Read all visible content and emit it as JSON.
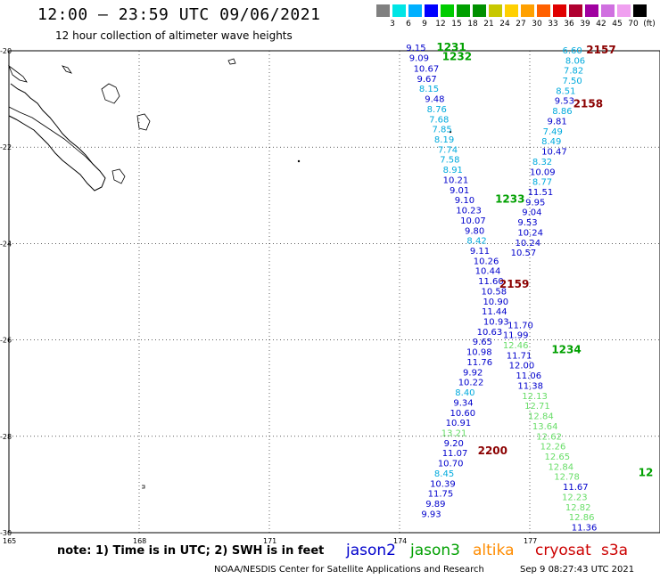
{
  "title": "12:00 – 23:59 UTC 09/06/2021",
  "subtitle": "12 hour collection of altimeter wave heights",
  "scale": {
    "colors": [
      "#808080",
      "#00e5e5",
      "#00b0ff",
      "#0000ff",
      "#00cc00",
      "#00a000",
      "#009000",
      "#c8c800",
      "#ffd000",
      "#ffa000",
      "#ff6000",
      "#e00000",
      "#b00030",
      "#a000a0",
      "#d070e0",
      "#f0a0f0",
      "#000000"
    ],
    "labels": [
      "3",
      "6",
      "9",
      "12",
      "15",
      "18",
      "21",
      "24",
      "27",
      "30",
      "33",
      "36",
      "39",
      "42",
      "45",
      "70",
      "(ft)"
    ]
  },
  "axes": {
    "lat_labels": [
      "-20",
      "-22",
      "-24",
      "-26",
      "-28",
      "-30"
    ],
    "lon_labels": [
      "165",
      "168",
      "171",
      "174",
      "177"
    ]
  },
  "note": "note: 1) Time is in UTC; 2) SWH is in feet",
  "satellites": [
    {
      "name": "jason2",
      "color": "#0000cc"
    },
    {
      "name": "jason3",
      "color": "#00a000"
    },
    {
      "name": "altika",
      "color": "#ff8c00"
    },
    {
      "name": "cryosat",
      "color": "#cc0000"
    },
    {
      "name": "s3a",
      "color": "#cc0000"
    }
  ],
  "credit": "NOAA/NESDIS Center for Satellite Applications and Research",
  "timestamp": "Sep  9 08:27:43 UTC 2021",
  "pass_labels": [
    {
      "text": "1231",
      "color": "#00a000",
      "lon": 174.85,
      "lat": -19.93
    },
    {
      "text": "1232",
      "color": "#00a000",
      "lon": 174.98,
      "lat": -20.12
    },
    {
      "text": "2157",
      "color": "#8b0000",
      "lon": 178.3,
      "lat": -19.98
    },
    {
      "text": "2158",
      "color": "#8b0000",
      "lon": 178.0,
      "lat": -21.1
    },
    {
      "text": "1233",
      "color": "#00a000",
      "lon": 176.2,
      "lat": -23.08
    },
    {
      "text": "2159",
      "color": "#8b0000",
      "lon": 176.3,
      "lat": -24.84
    },
    {
      "text": "1234",
      "color": "#00a000",
      "lon": 177.5,
      "lat": -26.2
    },
    {
      "text": "2200",
      "color": "#8b0000",
      "lon": 175.8,
      "lat": -28.3
    },
    {
      "text": "12",
      "color": "#00a000",
      "lon": 179.5,
      "lat": -28.75
    }
  ],
  "observations": [
    {
      "v": "9.15",
      "c": "#0000cc",
      "lon": 174.15,
      "lat": -19.93
    },
    {
      "v": "9.09",
      "c": "#0000cc",
      "lon": 174.22,
      "lat": -20.14
    },
    {
      "v": "10.67",
      "c": "#0000cc",
      "lon": 174.32,
      "lat": -20.36
    },
    {
      "v": "9.67",
      "c": "#0000cc",
      "lon": 174.4,
      "lat": -20.57
    },
    {
      "v": "8.15",
      "c": "#00aadd",
      "lon": 174.45,
      "lat": -20.78
    },
    {
      "v": "9.48",
      "c": "#0000cc",
      "lon": 174.58,
      "lat": -20.99
    },
    {
      "v": "8.76",
      "c": "#00aadd",
      "lon": 174.63,
      "lat": -21.2
    },
    {
      "v": "7.68",
      "c": "#00aadd",
      "lon": 174.68,
      "lat": -21.41
    },
    {
      "v": "7.85",
      "c": "#00aadd",
      "lon": 174.75,
      "lat": -21.62
    },
    {
      "v": "8.19",
      "c": "#00aadd",
      "lon": 174.8,
      "lat": -21.83
    },
    {
      "v": "7.74",
      "c": "#00aadd",
      "lon": 174.88,
      "lat": -22.04
    },
    {
      "v": "7.58",
      "c": "#00aadd",
      "lon": 174.93,
      "lat": -22.25
    },
    {
      "v": "8.91",
      "c": "#00aadd",
      "lon": 175.0,
      "lat": -22.46
    },
    {
      "v": "10.21",
      "c": "#0000cc",
      "lon": 175.0,
      "lat": -22.67
    },
    {
      "v": "9.01",
      "c": "#0000cc",
      "lon": 175.15,
      "lat": -22.88
    },
    {
      "v": "9.10",
      "c": "#0000cc",
      "lon": 175.27,
      "lat": -23.09
    },
    {
      "v": "10.23",
      "c": "#0000cc",
      "lon": 175.3,
      "lat": -23.3
    },
    {
      "v": "10.07",
      "c": "#0000cc",
      "lon": 175.4,
      "lat": -23.51
    },
    {
      "v": "9.80",
      "c": "#0000cc",
      "lon": 175.5,
      "lat": -23.72
    },
    {
      "v": "8.42",
      "c": "#00aadd",
      "lon": 175.55,
      "lat": -23.93
    },
    {
      "v": "9.11",
      "c": "#0000cc",
      "lon": 175.62,
      "lat": -24.14
    },
    {
      "v": "10.26",
      "c": "#0000cc",
      "lon": 175.7,
      "lat": -24.35
    },
    {
      "v": "10.44",
      "c": "#0000cc",
      "lon": 175.74,
      "lat": -24.56
    },
    {
      "v": "11.60",
      "c": "#0000cc",
      "lon": 175.81,
      "lat": -24.77
    },
    {
      "v": "10.58",
      "c": "#0000cc",
      "lon": 175.88,
      "lat": -24.98
    },
    {
      "v": "10.90",
      "c": "#0000cc",
      "lon": 175.92,
      "lat": -25.19
    },
    {
      "v": "11.44",
      "c": "#0000cc",
      "lon": 175.89,
      "lat": -25.4
    },
    {
      "v": "10.93",
      "c": "#0000cc",
      "lon": 175.93,
      "lat": -25.61
    },
    {
      "v": "10.63",
      "c": "#0000cc",
      "lon": 175.78,
      "lat": -25.82
    },
    {
      "v": "9.65",
      "c": "#0000cc",
      "lon": 175.68,
      "lat": -26.03
    },
    {
      "v": "10.98",
      "c": "#0000cc",
      "lon": 175.54,
      "lat": -26.24
    },
    {
      "v": "11.76",
      "c": "#0000cc",
      "lon": 175.55,
      "lat": -26.45
    },
    {
      "v": "9.92",
      "c": "#0000cc",
      "lon": 175.46,
      "lat": -26.66
    },
    {
      "v": "10.22",
      "c": "#0000cc",
      "lon": 175.35,
      "lat": -26.87
    },
    {
      "v": "8.40",
      "c": "#00aadd",
      "lon": 175.28,
      "lat": -27.08
    },
    {
      "v": "9.34",
      "c": "#0000cc",
      "lon": 175.24,
      "lat": -27.29
    },
    {
      "v": "10.60",
      "c": "#0000cc",
      "lon": 175.16,
      "lat": -27.5
    },
    {
      "v": "10.91",
      "c": "#0000cc",
      "lon": 175.06,
      "lat": -27.71
    },
    {
      "v": "13.21",
      "c": "#66dd66",
      "lon": 174.96,
      "lat": -27.92
    },
    {
      "v": "9.20",
      "c": "#0000cc",
      "lon": 175.02,
      "lat": -28.13
    },
    {
      "v": "11.07",
      "c": "#0000cc",
      "lon": 174.98,
      "lat": -28.34
    },
    {
      "v": "10.70",
      "c": "#0000cc",
      "lon": 174.88,
      "lat": -28.55
    },
    {
      "v": "8.45",
      "c": "#00aadd",
      "lon": 174.8,
      "lat": -28.76
    },
    {
      "v": "10.39",
      "c": "#0000cc",
      "lon": 174.7,
      "lat": -28.97
    },
    {
      "v": "11.75",
      "c": "#0000cc",
      "lon": 174.65,
      "lat": -29.18
    },
    {
      "v": "9.89",
      "c": "#0000cc",
      "lon": 174.6,
      "lat": -29.39
    },
    {
      "v": "9.93",
      "c": "#0000cc",
      "lon": 174.5,
      "lat": -29.6
    },
    {
      "v": "6.60",
      "c": "#00aadd",
      "lon": 177.75,
      "lat": -19.98
    },
    {
      "v": "8.06",
      "c": "#00aadd",
      "lon": 177.82,
      "lat": -20.19
    },
    {
      "v": "7.82",
      "c": "#00aadd",
      "lon": 177.78,
      "lat": -20.4
    },
    {
      "v": "7.50",
      "c": "#00aadd",
      "lon": 177.75,
      "lat": -20.61
    },
    {
      "v": "8.51",
      "c": "#00aadd",
      "lon": 177.6,
      "lat": -20.82
    },
    {
      "v": "9.53",
      "c": "#0000cc",
      "lon": 177.57,
      "lat": -21.03
    },
    {
      "v": "8.86",
      "c": "#00aadd",
      "lon": 177.52,
      "lat": -21.24
    },
    {
      "v": "9.81",
      "c": "#0000cc",
      "lon": 177.4,
      "lat": -21.45
    },
    {
      "v": "7.49",
      "c": "#00aadd",
      "lon": 177.3,
      "lat": -21.66
    },
    {
      "v": "8.49",
      "c": "#00aadd",
      "lon": 177.27,
      "lat": -21.87
    },
    {
      "v": "10.47",
      "c": "#0000cc",
      "lon": 177.27,
      "lat": -22.08
    },
    {
      "v": "8.32",
      "c": "#00aadd",
      "lon": 177.06,
      "lat": -22.29
    },
    {
      "v": "10.09",
      "c": "#0000cc",
      "lon": 177.0,
      "lat": -22.5
    },
    {
      "v": "8.77",
      "c": "#00aadd",
      "lon": 177.06,
      "lat": -22.71
    },
    {
      "v": "11.51",
      "c": "#0000cc",
      "lon": 176.95,
      "lat": -22.92
    },
    {
      "v": "9.95",
      "c": "#0000cc",
      "lon": 176.9,
      "lat": -23.13
    },
    {
      "v": "9.04",
      "c": "#0000cc",
      "lon": 176.82,
      "lat": -23.34
    },
    {
      "v": "9.53",
      "c": "#0000cc",
      "lon": 176.72,
      "lat": -23.55
    },
    {
      "v": "10.24",
      "c": "#0000cc",
      "lon": 176.72,
      "lat": -23.76
    },
    {
      "v": "10.24",
      "c": "#0000cc",
      "lon": 176.66,
      "lat": -23.97
    },
    {
      "v": "10.57",
      "c": "#0000cc",
      "lon": 176.56,
      "lat": -24.18
    },
    {
      "v": "11.70",
      "c": "#0000cc",
      "lon": 176.49,
      "lat": -25.68
    },
    {
      "v": "11.99",
      "c": "#0000cc",
      "lon": 176.38,
      "lat": -25.89
    },
    {
      "v": "12.46",
      "c": "#66dd66",
      "lon": 176.38,
      "lat": -26.1
    },
    {
      "v": "11.71",
      "c": "#0000cc",
      "lon": 176.46,
      "lat": -26.31
    },
    {
      "v": "12.00",
      "c": "#0000cc",
      "lon": 176.52,
      "lat": -26.52
    },
    {
      "v": "11.06",
      "c": "#0000cc",
      "lon": 176.68,
      "lat": -26.73
    },
    {
      "v": "11.38",
      "c": "#0000cc",
      "lon": 176.72,
      "lat": -26.94
    },
    {
      "v": "12.13",
      "c": "#66dd66",
      "lon": 176.82,
      "lat": -27.15
    },
    {
      "v": "12.71",
      "c": "#66dd66",
      "lon": 176.88,
      "lat": -27.36
    },
    {
      "v": "12.84",
      "c": "#66dd66",
      "lon": 176.96,
      "lat": -27.57
    },
    {
      "v": "13.64",
      "c": "#66dd66",
      "lon": 177.06,
      "lat": -27.78
    },
    {
      "v": "12.62",
      "c": "#66dd66",
      "lon": 177.15,
      "lat": -27.99
    },
    {
      "v": "12.26",
      "c": "#66dd66",
      "lon": 177.24,
      "lat": -28.2
    },
    {
      "v": "12.65",
      "c": "#66dd66",
      "lon": 177.34,
      "lat": -28.41
    },
    {
      "v": "12.84",
      "c": "#66dd66",
      "lon": 177.42,
      "lat": -28.62
    },
    {
      "v": "12.78",
      "c": "#66dd66",
      "lon": 177.56,
      "lat": -28.83
    },
    {
      "v": "11.67",
      "c": "#0000cc",
      "lon": 177.76,
      "lat": -29.04
    },
    {
      "v": "12.23",
      "c": "#66dd66",
      "lon": 177.74,
      "lat": -29.25
    },
    {
      "v": "12.82",
      "c": "#66dd66",
      "lon": 177.82,
      "lat": -29.46
    },
    {
      "v": "12.86",
      "c": "#66dd66",
      "lon": 177.9,
      "lat": -29.67
    },
    {
      "v": "11.36",
      "c": "#0000cc",
      "lon": 177.96,
      "lat": -29.88
    }
  ]
}
